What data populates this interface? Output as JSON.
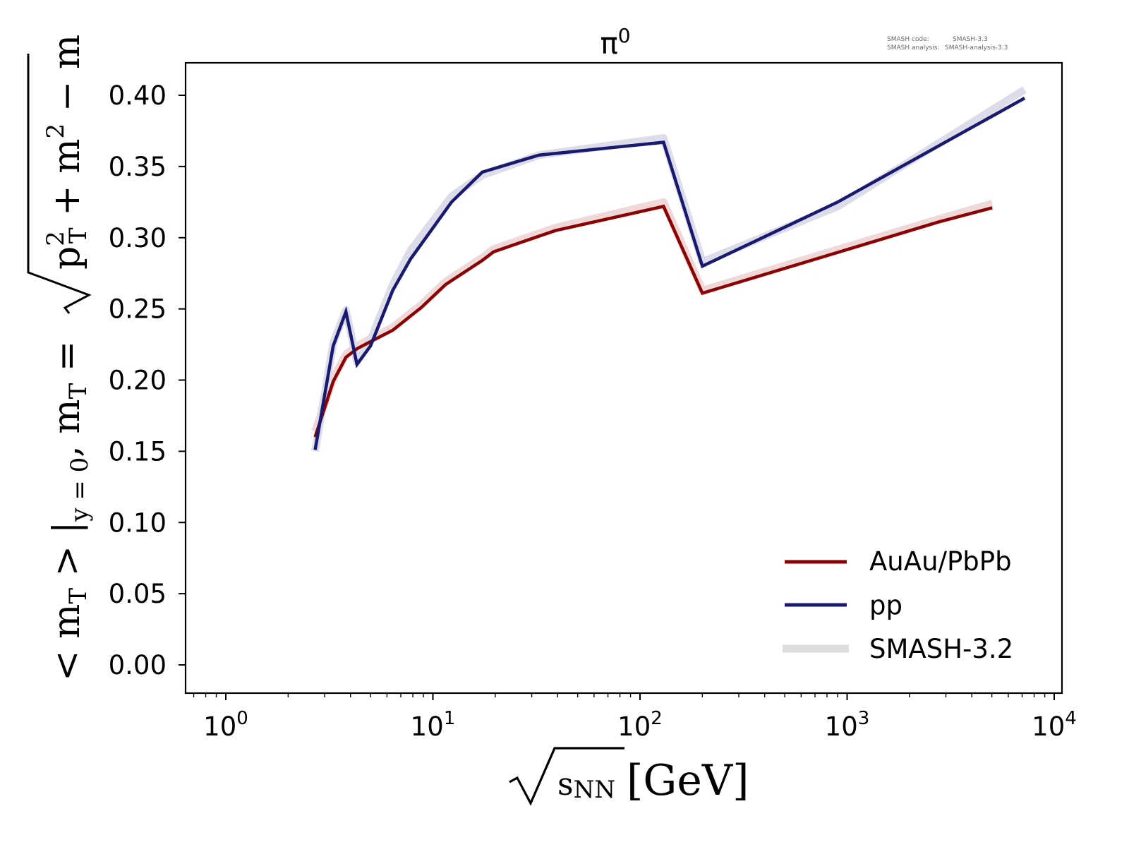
{
  "chart_data": {
    "type": "line",
    "title": "π⁰",
    "title_base": "π",
    "title_sup": "0",
    "xlabel": "√sNN [GeV]",
    "xlabel_parts": {
      "root_arg": "s",
      "sub": "NN",
      "unit": "[GeV]"
    },
    "ylabel": "<mT>|y=0, mT = √(pT² + m²) − m",
    "ylabel_parts": {
      "part1": "< m",
      "sub1": "T",
      "part2": " > |",
      "sub2": "y = 0",
      "part3": ",  m",
      "sub3": "T",
      "part4": " = ",
      "root_p": "p",
      "root_sup": "2",
      "root_sub": "T",
      "root_rest": " + m",
      "root_sup2": "2",
      "tail": " − m"
    },
    "xscale": "log",
    "xlim": [
      0.65,
      11000
    ],
    "ylim": [
      -0.02,
      0.423
    ],
    "x_ticks": [
      {
        "value": 1,
        "base": "10",
        "exp": "0"
      },
      {
        "value": 10,
        "base": "10",
        "exp": "1"
      },
      {
        "value": 100,
        "base": "10",
        "exp": "2"
      },
      {
        "value": 1000,
        "base": "10",
        "exp": "3"
      },
      {
        "value": 10000,
        "base": "10",
        "exp": "4"
      }
    ],
    "y_ticks": [
      {
        "value": 0.0,
        "label": "0.00"
      },
      {
        "value": 0.05,
        "label": "0.05"
      },
      {
        "value": 0.1,
        "label": "0.10"
      },
      {
        "value": 0.15,
        "label": "0.15"
      },
      {
        "value": 0.2,
        "label": "0.20"
      },
      {
        "value": 0.25,
        "label": "0.25"
      },
      {
        "value": 0.3,
        "label": "0.30"
      },
      {
        "value": 0.35,
        "label": "0.35"
      },
      {
        "value": 0.4,
        "label": "0.40"
      }
    ],
    "grid": false,
    "legend_position": "lower-right",
    "series": [
      {
        "name": "AuAu/PbPb",
        "color": "#8b0000",
        "reference_color": "#f0d8d8",
        "x": [
          2.7,
          3.3,
          3.8,
          4.3,
          5.0,
          6.4,
          7.8,
          8.8,
          11.5,
          17.3,
          19.6,
          27,
          39,
          130,
          200,
          2760,
          5020
        ],
        "y": [
          0.16,
          0.199,
          0.216,
          0.222,
          0.227,
          0.235,
          0.245,
          0.251,
          0.267,
          0.284,
          0.29,
          0.297,
          0.305,
          0.322,
          0.261,
          0.311,
          0.321
        ],
        "reference_y": [
          0.164,
          0.201,
          0.218,
          0.224,
          0.229,
          0.237,
          0.247,
          0.253,
          0.269,
          0.286,
          0.292,
          0.299,
          0.307,
          0.325,
          0.263,
          0.313,
          0.324
        ]
      },
      {
        "name": "pp",
        "color": "#191970",
        "reference_color": "#dcdcea",
        "x": [
          2.7,
          3.3,
          3.8,
          4.3,
          5.0,
          6.4,
          7.8,
          12.3,
          17.3,
          32.6,
          130,
          200,
          900,
          7200
        ],
        "y": [
          0.151,
          0.224,
          0.248,
          0.211,
          0.224,
          0.263,
          0.285,
          0.325,
          0.346,
          0.358,
          0.367,
          0.28,
          0.325,
          0.398
        ],
        "reference_y": [
          0.15,
          0.226,
          0.249,
          0.213,
          0.228,
          0.267,
          0.291,
          0.329,
          0.344,
          0.358,
          0.37,
          0.283,
          0.322,
          0.404
        ]
      }
    ],
    "legend": [
      {
        "label": "AuAu/PbPb",
        "color": "#8b0000"
      },
      {
        "label": "pp",
        "color": "#191970"
      },
      {
        "label": "SMASH-3.2",
        "color": "#dddddd"
      }
    ],
    "annotations": {
      "code_label": "SMASH code:",
      "code_value": "SMASH-3.3",
      "analysis_label": "SMASH analysis:",
      "analysis_value": "SMASH-analysis-3.3"
    }
  }
}
